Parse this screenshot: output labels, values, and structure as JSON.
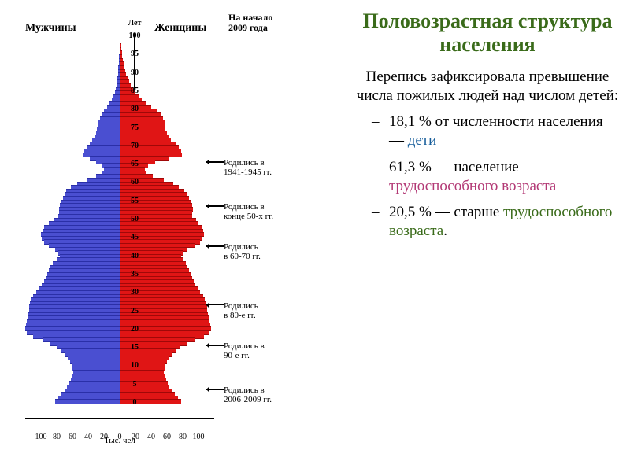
{
  "title": "Половозрастная структура населения",
  "title_fontsize": 26,
  "subtitle": "Перепись зафиксировала превышение числа пожилых людей над числом детей:",
  "subtitle_fontsize": 19,
  "bullets": [
    {
      "pct": "18,1 %",
      "tail": " от численности населения — ",
      "hl": "дети",
      "hl_class": "hl1"
    },
    {
      "pct": "61,3 %",
      "tail": " — население ",
      "hl": "трудоспособного возраста",
      "hl_class": "hl2"
    },
    {
      "pct": "20,5 %",
      "tail": " — старше ",
      "hl": "трудоспособного возраста",
      "hl_class": "hl3",
      "trail": "."
    }
  ],
  "bullet_fontsize": 19,
  "chart": {
    "men_label": "Мужчины",
    "women_label": "Женщины",
    "date_note_l1": "На начало",
    "date_note_l2": "2009 года",
    "y_unit": "Лет",
    "y_top": "100",
    "x_unit": "Тыс. чел",
    "y_ticks": [
      100,
      95,
      90,
      85,
      80,
      75,
      70,
      65,
      60,
      55,
      50,
      45,
      40,
      35,
      30,
      25,
      20,
      15,
      10,
      5,
      0
    ],
    "x_ticks_left": [
      100,
      80,
      60,
      40,
      20,
      0
    ],
    "x_ticks_right": [
      20,
      40,
      60,
      80,
      100
    ],
    "x_max": 120,
    "male_color": "#4a4fd1",
    "male_border": "#2a2fa8",
    "female_color": "#e01515",
    "female_border": "#a00808",
    "bars": [
      {
        "age": 100,
        "m": 0,
        "f": 1
      },
      {
        "age": 99,
        "m": 0,
        "f": 1
      },
      {
        "age": 98,
        "m": 0,
        "f": 1.5
      },
      {
        "age": 97,
        "m": 0.5,
        "f": 2
      },
      {
        "age": 96,
        "m": 0.5,
        "f": 2.5
      },
      {
        "age": 95,
        "m": 1,
        "f": 3
      },
      {
        "age": 94,
        "m": 1,
        "f": 4
      },
      {
        "age": 93,
        "m": 1.5,
        "f": 5
      },
      {
        "age": 92,
        "m": 2,
        "f": 6
      },
      {
        "age": 91,
        "m": 2,
        "f": 7
      },
      {
        "age": 90,
        "m": 2.5,
        "f": 8
      },
      {
        "age": 89,
        "m": 3,
        "f": 10
      },
      {
        "age": 88,
        "m": 3.5,
        "f": 12
      },
      {
        "age": 87,
        "m": 4,
        "f": 14
      },
      {
        "age": 86,
        "m": 5,
        "f": 17
      },
      {
        "age": 85,
        "m": 6,
        "f": 20
      },
      {
        "age": 84,
        "m": 8,
        "f": 24
      },
      {
        "age": 83,
        "m": 10,
        "f": 28
      },
      {
        "age": 82,
        "m": 13,
        "f": 34
      },
      {
        "age": 81,
        "m": 16,
        "f": 40
      },
      {
        "age": 80,
        "m": 20,
        "f": 47
      },
      {
        "age": 79,
        "m": 23,
        "f": 52
      },
      {
        "age": 78,
        "m": 25,
        "f": 55
      },
      {
        "age": 77,
        "m": 27,
        "f": 57
      },
      {
        "age": 76,
        "m": 28,
        "f": 58
      },
      {
        "age": 75,
        "m": 29,
        "f": 58
      },
      {
        "age": 74,
        "m": 30,
        "f": 60
      },
      {
        "age": 73,
        "m": 32,
        "f": 62
      },
      {
        "age": 72,
        "m": 35,
        "f": 65
      },
      {
        "age": 71,
        "m": 38,
        "f": 71
      },
      {
        "age": 70,
        "m": 42,
        "f": 75
      },
      {
        "age": 69,
        "m": 45,
        "f": 78
      },
      {
        "age": 68,
        "m": 46,
        "f": 79
      },
      {
        "age": 67,
        "m": 38,
        "f": 62
      },
      {
        "age": 66,
        "m": 30,
        "f": 45
      },
      {
        "age": 65,
        "m": 23,
        "f": 36
      },
      {
        "age": 64,
        "m": 20,
        "f": 32
      },
      {
        "age": 63,
        "m": 22,
        "f": 33
      },
      {
        "age": 62,
        "m": 30,
        "f": 42
      },
      {
        "age": 61,
        "m": 42,
        "f": 56
      },
      {
        "age": 60,
        "m": 54,
        "f": 68
      },
      {
        "age": 59,
        "m": 62,
        "f": 75
      },
      {
        "age": 58,
        "m": 68,
        "f": 82
      },
      {
        "age": 57,
        "m": 70,
        "f": 86
      },
      {
        "age": 56,
        "m": 72,
        "f": 88
      },
      {
        "age": 55,
        "m": 74,
        "f": 90
      },
      {
        "age": 54,
        "m": 76,
        "f": 92
      },
      {
        "age": 53,
        "m": 77,
        "f": 93
      },
      {
        "age": 52,
        "m": 77,
        "f": 92
      },
      {
        "age": 51,
        "m": 78,
        "f": 92
      },
      {
        "age": 50,
        "m": 84,
        "f": 97
      },
      {
        "age": 49,
        "m": 90,
        "f": 100
      },
      {
        "age": 48,
        "m": 96,
        "f": 105
      },
      {
        "age": 47,
        "m": 98,
        "f": 106
      },
      {
        "age": 46,
        "m": 100,
        "f": 107
      },
      {
        "age": 45,
        "m": 99,
        "f": 105
      },
      {
        "age": 44,
        "m": 96,
        "f": 102
      },
      {
        "age": 43,
        "m": 90,
        "f": 95
      },
      {
        "age": 42,
        "m": 82,
        "f": 86
      },
      {
        "age": 41,
        "m": 78,
        "f": 80
      },
      {
        "age": 40,
        "m": 76,
        "f": 78
      },
      {
        "age": 39,
        "m": 80,
        "f": 80
      },
      {
        "age": 38,
        "m": 85,
        "f": 84
      },
      {
        "age": 37,
        "m": 88,
        "f": 86
      },
      {
        "age": 36,
        "m": 90,
        "f": 88
      },
      {
        "age": 35,
        "m": 92,
        "f": 90
      },
      {
        "age": 34,
        "m": 94,
        "f": 92
      },
      {
        "age": 33,
        "m": 96,
        "f": 94
      },
      {
        "age": 32,
        "m": 99,
        "f": 96
      },
      {
        "age": 31,
        "m": 102,
        "f": 99
      },
      {
        "age": 30,
        "m": 106,
        "f": 102
      },
      {
        "age": 29,
        "m": 110,
        "f": 106
      },
      {
        "age": 28,
        "m": 113,
        "f": 108
      },
      {
        "age": 27,
        "m": 114,
        "f": 110
      },
      {
        "age": 26,
        "m": 115,
        "f": 111
      },
      {
        "age": 25,
        "m": 115,
        "f": 111
      },
      {
        "age": 24,
        "m": 116,
        "f": 112
      },
      {
        "age": 23,
        "m": 117,
        "f": 113
      },
      {
        "age": 22,
        "m": 118,
        "f": 114
      },
      {
        "age": 21,
        "m": 119,
        "f": 115
      },
      {
        "age": 20,
        "m": 120,
        "f": 116
      },
      {
        "age": 19,
        "m": 118,
        "f": 114
      },
      {
        "age": 18,
        "m": 110,
        "f": 107
      },
      {
        "age": 17,
        "m": 98,
        "f": 96
      },
      {
        "age": 16,
        "m": 88,
        "f": 85
      },
      {
        "age": 15,
        "m": 80,
        "f": 77
      },
      {
        "age": 14,
        "m": 74,
        "f": 71
      },
      {
        "age": 13,
        "m": 70,
        "f": 67
      },
      {
        "age": 12,
        "m": 66,
        "f": 63
      },
      {
        "age": 11,
        "m": 63,
        "f": 60
      },
      {
        "age": 10,
        "m": 61,
        "f": 58
      },
      {
        "age": 9,
        "m": 60,
        "f": 57
      },
      {
        "age": 8,
        "m": 59,
        "f": 56
      },
      {
        "age": 7,
        "m": 60,
        "f": 57
      },
      {
        "age": 6,
        "m": 62,
        "f": 59
      },
      {
        "age": 5,
        "m": 64,
        "f": 61
      },
      {
        "age": 4,
        "m": 67,
        "f": 63
      },
      {
        "age": 3,
        "m": 70,
        "f": 66
      },
      {
        "age": 2,
        "m": 74,
        "f": 70
      },
      {
        "age": 1,
        "m": 78,
        "f": 74
      },
      {
        "age": 0,
        "m": 82,
        "f": 78
      }
    ],
    "annotations": [
      {
        "age": 65,
        "l1": "Родились в",
        "l2": "1941-1945 гг."
      },
      {
        "age": 53,
        "l1": "Родились в",
        "l2": "конце 50-х гг."
      },
      {
        "age": 42,
        "l1": "Родились",
        "l2": "в 60-70 гг."
      },
      {
        "age": 26,
        "l1": "Родились",
        "l2": "в 80-е гг."
      },
      {
        "age": 15,
        "l1": "Родились в",
        "l2": "90-е гг."
      },
      {
        "age": 3,
        "l1": "Родились в",
        "l2": "2006-2009 гг."
      }
    ]
  }
}
